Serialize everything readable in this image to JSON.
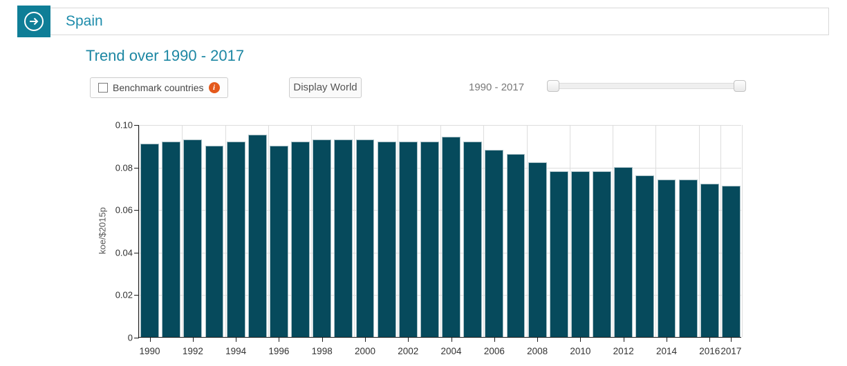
{
  "header": {
    "title": "Spain",
    "nav_icon": "arrow-right-circle-icon"
  },
  "subtitle": "Trend over 1990 - 2017",
  "controls": {
    "benchmark_label": "Benchmark countries",
    "benchmark_checked": false,
    "info_icon": "info-circle-icon",
    "display_world_label": "Display World",
    "range_label": "1990 - 2017",
    "slider": {
      "min": 1990,
      "max": 2017,
      "from": 1990,
      "to": 2017
    }
  },
  "colors": {
    "accent_teal": "#0f7e97",
    "title_teal": "#1d87a3",
    "bar_fill": "#064a5c",
    "bar_stroke": "#a9c0c6",
    "info_orange": "#e4591c",
    "gridline": "#dddddd"
  },
  "chart_data": {
    "type": "bar",
    "title": "Trend over 1990 - 2017",
    "xlabel": "",
    "ylabel": "koe/$2015p",
    "ylim": [
      0,
      0.1
    ],
    "grid": true,
    "legend": "none",
    "categories": [
      1990,
      1991,
      1992,
      1993,
      1994,
      1995,
      1996,
      1997,
      1998,
      1999,
      2000,
      2001,
      2002,
      2003,
      2004,
      2005,
      2006,
      2007,
      2008,
      2009,
      2010,
      2011,
      2012,
      2013,
      2014,
      2015,
      2016,
      2017
    ],
    "values": [
      0.091,
      0.092,
      0.093,
      0.09,
      0.092,
      0.095,
      0.09,
      0.092,
      0.093,
      0.093,
      0.093,
      0.092,
      0.092,
      0.092,
      0.094,
      0.092,
      0.088,
      0.086,
      0.082,
      0.078,
      0.078,
      0.078,
      0.08,
      0.076,
      0.074,
      0.074,
      0.072,
      0.071
    ],
    "yticks": [
      {
        "value": 0,
        "label": "0"
      },
      {
        "value": 0.02,
        "label": "0.02"
      },
      {
        "value": 0.04,
        "label": "0.04"
      },
      {
        "value": 0.06,
        "label": "0.06"
      },
      {
        "value": 0.08,
        "label": "0.08"
      },
      {
        "value": 0.1,
        "label": "0.10"
      }
    ],
    "xtick_labels": [
      "1990",
      "1992",
      "1994",
      "1996",
      "1998",
      "2000",
      "2002",
      "2004",
      "2006",
      "2008",
      "2010",
      "2012",
      "2014",
      "2016",
      "2017"
    ]
  }
}
